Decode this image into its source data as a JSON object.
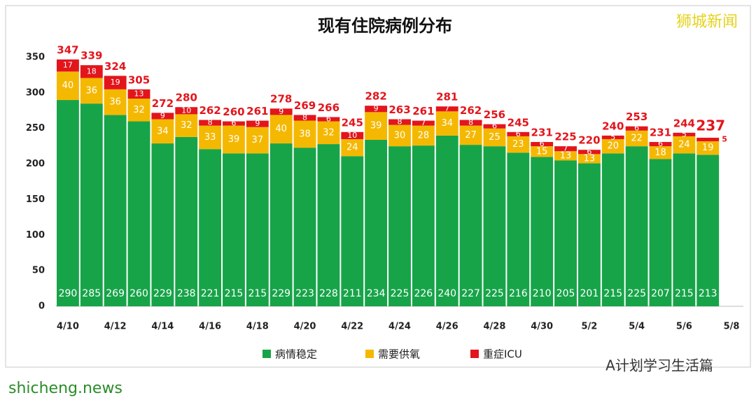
{
  "chart_data": {
    "type": "stacked_bar",
    "title": "现有住院病例分布",
    "categories": [
      "4/10",
      null,
      "4/12",
      null,
      "4/14",
      null,
      "4/16",
      null,
      "4/18",
      null,
      "4/20",
      null,
      "4/22",
      null,
      "4/24",
      null,
      "4/26",
      null,
      "4/28",
      null,
      "4/30",
      null,
      "5/2",
      null,
      "5/4",
      null,
      "5/6",
      null,
      "5/8"
    ],
    "series": [
      {
        "name": "病情稳定",
        "color": "#17a449",
        "values": [
          290,
          285,
          269,
          260,
          229,
          238,
          221,
          215,
          215,
          229,
          223,
          228,
          211,
          234,
          225,
          226,
          240,
          227,
          225,
          216,
          210,
          205,
          201,
          215,
          225,
          207,
          215,
          213,
          null
        ]
      },
      {
        "name": "需要供氧",
        "color": "#f5b800",
        "values": [
          40,
          36,
          36,
          32,
          34,
          32,
          33,
          39,
          37,
          40,
          38,
          32,
          24,
          39,
          30,
          28,
          34,
          27,
          25,
          23,
          15,
          13,
          13,
          20,
          22,
          18,
          24,
          19,
          null
        ]
      },
      {
        "name": "重症ICU",
        "color": "#e3151c",
        "values": [
          17,
          18,
          19,
          13,
          9,
          10,
          8,
          6,
          9,
          9,
          8,
          6,
          10,
          9,
          8,
          7,
          7,
          8,
          6,
          6,
          6,
          7,
          6,
          5,
          6,
          6,
          5,
          5,
          null
        ]
      }
    ],
    "totals": [
      347,
      339,
      324,
      305,
      272,
      280,
      262,
      260,
      261,
      278,
      269,
      266,
      245,
      282,
      263,
      261,
      281,
      262,
      256,
      245,
      231,
      225,
      220,
      240,
      253,
      231,
      244,
      237,
      null
    ],
    "ylim": [
      0,
      350
    ],
    "yticks": [
      0,
      50,
      100,
      150,
      200,
      250,
      300,
      350
    ],
    "grid": false,
    "watermarks": [
      "狮城新闻",
      "A计划学习生活篇",
      "shicheng.news"
    ]
  }
}
